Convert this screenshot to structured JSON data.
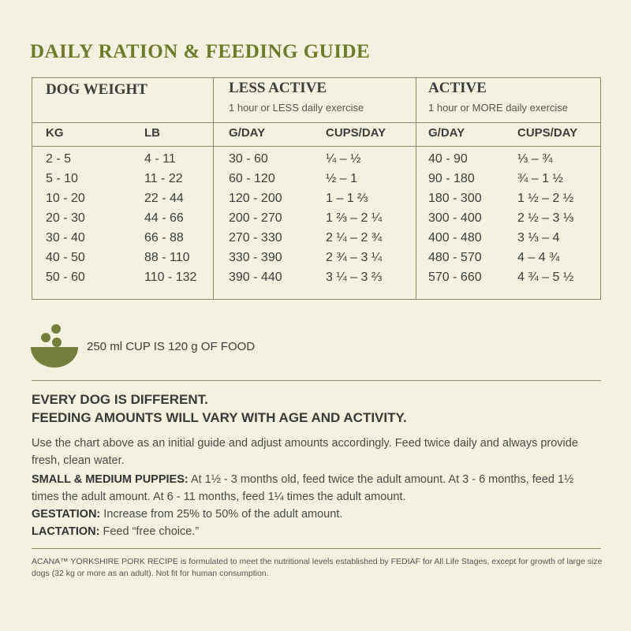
{
  "title": "DAILY RATION & FEEDING GUIDE",
  "table": {
    "groups": [
      {
        "title": "DOG WEIGHT"
      },
      {
        "title": "LESS ACTIVE",
        "subtitle": "1 hour or LESS daily exercise"
      },
      {
        "title": "ACTIVE",
        "subtitle": "1 hour or MORE daily exercise"
      }
    ],
    "columns": [
      "KG",
      "LB",
      "G/DAY",
      "CUPS/DAY",
      "G/DAY",
      "CUPS/DAY"
    ],
    "rows": [
      [
        "2 - 5",
        "4 - 11",
        "30 - 60",
        "¼ – ½",
        "40 - 90",
        "⅓ – ¾"
      ],
      [
        "5 - 10",
        "11 - 22",
        "60 - 120",
        "½ – 1",
        "90 - 180",
        "¾ – 1 ½"
      ],
      [
        "10 - 20",
        "22 - 44",
        "120 - 200",
        "1 – 1 ⅔",
        "180 - 300",
        "1 ½ – 2 ½"
      ],
      [
        "20 - 30",
        "44 - 66",
        "200 - 270",
        "1 ⅔ – 2 ¼",
        "300 - 400",
        "2 ½ – 3 ⅓"
      ],
      [
        "30 - 40",
        "66 - 88",
        "270 - 330",
        "2 ¼ – 2 ¾",
        "400 - 480",
        "3 ⅓ – 4"
      ],
      [
        "40 - 50",
        "88 - 110",
        "330 - 390",
        "2 ¾ – 3 ¼",
        "480 - 570",
        "4 – 4 ¾"
      ],
      [
        "50 - 60",
        "110 - 132",
        "390 - 440",
        "3 ¼ – 3 ⅔",
        "570 - 660",
        "4 ¾ – 5 ½"
      ]
    ]
  },
  "cup_note": "250 ml CUP IS 120 g OF FOOD",
  "notes": {
    "headings": [
      "EVERY DOG IS DIFFERENT.",
      "FEEDING AMOUNTS WILL VARY WITH AGE AND ACTIVITY."
    ],
    "intro": "Use the chart above as an initial guide and adjust amounts accordingly. Feed twice daily and always provide fresh, clean water.",
    "items": [
      {
        "label": "SMALL & MEDIUM PUPPIES:",
        "text": "At 1½ - 3 months old, feed twice the adult amount. At 3 - 6 months, feed 1½ times the adult amount. At 6 - 11 months, feed 1¼ times the adult amount."
      },
      {
        "label": "GESTATION:",
        "text": "Increase from 25% to 50% of the adult amount."
      },
      {
        "label": "LACTATION:",
        "text": "Feed “free choice.”"
      }
    ]
  },
  "footer": "ACANA™ YORKSHIRE PORK RECIPE is formulated to meet the nutritional levels established by FEDIAF for All Life Stages, except for growth of large size dogs (32 kg or more as an adult). Not fit for human consumption."
}
